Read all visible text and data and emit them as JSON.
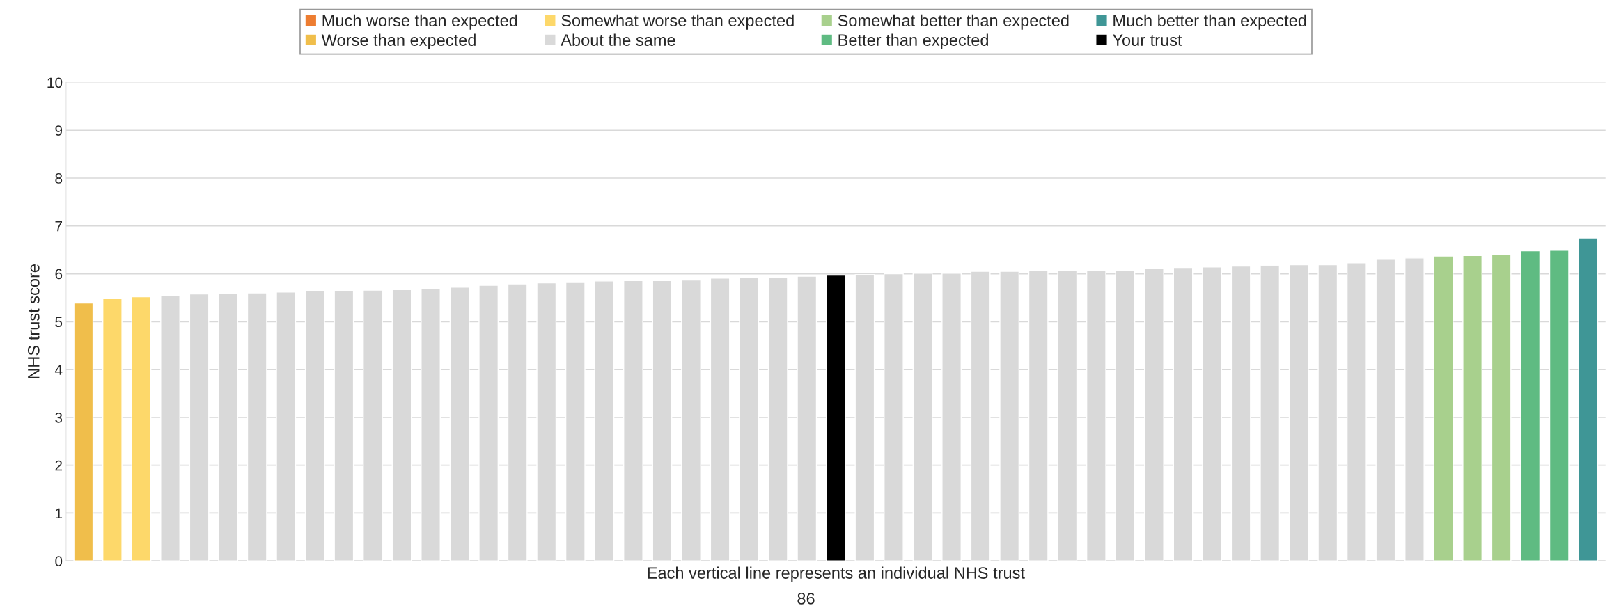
{
  "chart_data": {
    "type": "bar",
    "xlabel": "Each vertical line represents an individual NHS trust",
    "ylabel": "NHS trust score",
    "annotations": [
      "86"
    ],
    "categories": [
      null,
      null,
      null,
      null,
      null,
      null,
      null,
      null,
      null,
      null,
      null,
      null,
      null,
      null,
      null,
      null,
      null,
      null,
      null,
      null,
      null,
      null,
      null,
      null,
      null,
      null,
      null,
      null,
      null,
      null,
      null,
      null,
      null,
      null,
      null,
      null,
      null,
      null,
      null,
      null,
      null,
      null,
      null,
      null,
      null,
      null,
      null,
      null,
      null,
      null,
      null,
      null,
      null
    ],
    "series": [
      {
        "name": "Much worse than expected",
        "color": "#ed7d31",
        "values": [
          null,
          null,
          null,
          null,
          null,
          null,
          null,
          null,
          null,
          null,
          null,
          null,
          null,
          null,
          null,
          null,
          null,
          null,
          null,
          null,
          null,
          null,
          null,
          null,
          null,
          null,
          null,
          null,
          null,
          null,
          null,
          null,
          null,
          null,
          null,
          null,
          null,
          null,
          null,
          null,
          null,
          null,
          null,
          null,
          null,
          null,
          null,
          null,
          null,
          null,
          null,
          null,
          null
        ]
      },
      {
        "name": "Worse than expected",
        "color": "#f0be4b",
        "values": [
          5.39,
          null,
          null,
          null,
          null,
          null,
          null,
          null,
          null,
          null,
          null,
          null,
          null,
          null,
          null,
          null,
          null,
          null,
          null,
          null,
          null,
          null,
          null,
          null,
          null,
          null,
          null,
          null,
          null,
          null,
          null,
          null,
          null,
          null,
          null,
          null,
          null,
          null,
          null,
          null,
          null,
          null,
          null,
          null,
          null,
          null,
          null,
          null,
          null,
          null,
          null,
          null,
          null
        ]
      },
      {
        "name": "Somewhat worse than expected",
        "color": "#fdd86a",
        "values": [
          null,
          5.48,
          5.52,
          null,
          null,
          null,
          null,
          null,
          null,
          null,
          null,
          null,
          null,
          null,
          null,
          null,
          null,
          null,
          null,
          null,
          null,
          null,
          null,
          null,
          null,
          null,
          null,
          null,
          null,
          null,
          null,
          null,
          null,
          null,
          null,
          null,
          null,
          null,
          null,
          null,
          null,
          null,
          null,
          null,
          null,
          null,
          null,
          null,
          null,
          null,
          null,
          null,
          null
        ]
      },
      {
        "name": "About the same",
        "color": "#d9d9d9",
        "values": [
          null,
          null,
          null,
          5.55,
          5.58,
          5.59,
          5.6,
          5.62,
          5.65,
          5.65,
          5.66,
          5.67,
          5.69,
          5.72,
          5.76,
          5.79,
          5.81,
          5.82,
          5.85,
          5.86,
          5.86,
          5.87,
          5.91,
          5.93,
          5.93,
          5.95,
          null,
          5.98,
          6.0,
          6.01,
          6.01,
          6.05,
          6.05,
          6.06,
          6.06,
          6.06,
          6.07,
          6.12,
          6.13,
          6.14,
          6.16,
          6.17,
          6.19,
          6.19,
          6.23,
          6.3,
          6.33,
          null,
          null,
          null,
          null,
          null,
          null
        ]
      },
      {
        "name": "Somewhat better than expected",
        "color": "#a8d08d",
        "values": [
          null,
          null,
          null,
          null,
          null,
          null,
          null,
          null,
          null,
          null,
          null,
          null,
          null,
          null,
          null,
          null,
          null,
          null,
          null,
          null,
          null,
          null,
          null,
          null,
          null,
          null,
          null,
          null,
          null,
          null,
          null,
          null,
          null,
          null,
          null,
          null,
          null,
          null,
          null,
          null,
          null,
          null,
          null,
          null,
          null,
          null,
          null,
          6.37,
          6.38,
          6.4,
          null,
          null,
          null
        ]
      },
      {
        "name": "Better than expected",
        "color": "#5fbb82",
        "values": [
          null,
          null,
          null,
          null,
          null,
          null,
          null,
          null,
          null,
          null,
          null,
          null,
          null,
          null,
          null,
          null,
          null,
          null,
          null,
          null,
          null,
          null,
          null,
          null,
          null,
          null,
          null,
          null,
          null,
          null,
          null,
          null,
          null,
          null,
          null,
          null,
          null,
          null,
          null,
          null,
          null,
          null,
          null,
          null,
          null,
          null,
          null,
          null,
          null,
          null,
          6.48,
          6.49,
          null
        ]
      },
      {
        "name": "Much better than expected",
        "color": "#3f9696",
        "values": [
          null,
          null,
          null,
          null,
          null,
          null,
          null,
          null,
          null,
          null,
          null,
          null,
          null,
          null,
          null,
          null,
          null,
          null,
          null,
          null,
          null,
          null,
          null,
          null,
          null,
          null,
          null,
          null,
          null,
          null,
          null,
          null,
          null,
          null,
          null,
          null,
          null,
          null,
          null,
          null,
          null,
          null,
          null,
          null,
          null,
          null,
          null,
          null,
          null,
          null,
          null,
          null,
          6.75
        ]
      },
      {
        "name": "Your trust",
        "color": "#000000",
        "values": [
          null,
          null,
          null,
          null,
          null,
          null,
          null,
          null,
          null,
          null,
          null,
          null,
          null,
          null,
          null,
          null,
          null,
          null,
          null,
          null,
          null,
          null,
          null,
          null,
          null,
          null,
          5.97,
          null,
          null,
          null,
          null,
          null,
          null,
          null,
          null,
          null,
          null,
          null,
          null,
          null,
          null,
          null,
          null,
          null,
          null,
          null,
          null,
          null,
          null,
          null,
          null,
          null,
          null
        ]
      }
    ],
    "ylim": [
      0,
      10
    ],
    "yticks": [
      0,
      1,
      2,
      3,
      4,
      5,
      6,
      7,
      8,
      9,
      10
    ],
    "grid": "y",
    "legend": "top",
    "tick_labels": "y"
  }
}
